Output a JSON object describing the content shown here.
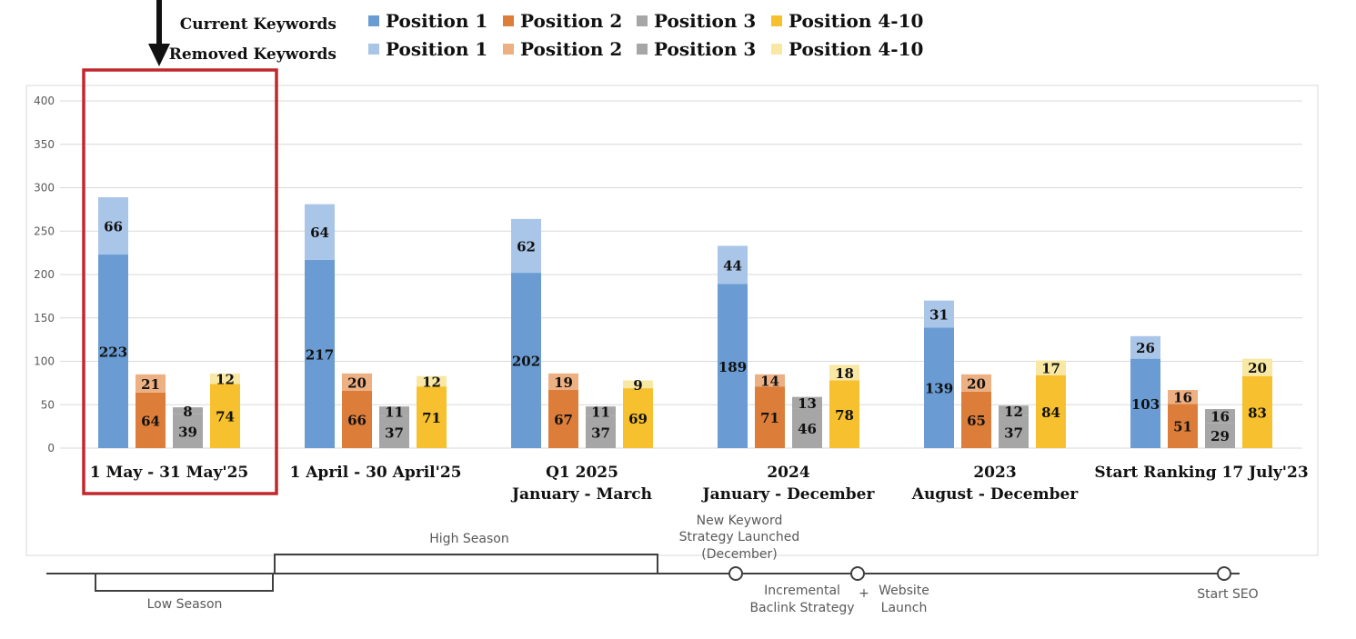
{
  "legend": {
    "current_label": "Current Keywords",
    "removed_label": "Removed Keywords",
    "current_items": [
      {
        "name": "Position 1",
        "color": "#6a9cd3"
      },
      {
        "name": "Position 2",
        "color": "#dc7e3a"
      },
      {
        "name": "Position 3",
        "color": "#a6a6a6"
      },
      {
        "name": "Position 4-10",
        "color": "#f6c02e"
      }
    ],
    "removed_items": [
      {
        "name": "Position 1",
        "color": "#a9c5e7"
      },
      {
        "name": "Position 2",
        "color": "#edb083"
      },
      {
        "name": "Position 3",
        "color": "#a6a6a6"
      },
      {
        "name": "Position 4-10",
        "color": "#f8e8a4"
      }
    ]
  },
  "chart_data": {
    "type": "bar",
    "stacked": true,
    "ylim": [
      0,
      400
    ],
    "yticks": [
      0,
      50,
      100,
      150,
      200,
      250,
      300,
      350,
      400
    ],
    "grid": true,
    "categories": [
      [
        "1 May - 31 May'25"
      ],
      [
        "1 April - 30 April'25"
      ],
      [
        "Q1 2025",
        "January - March"
      ],
      [
        "2024",
        "January - December"
      ],
      [
        "2023",
        "August - December"
      ],
      [
        "Start Ranking 17 July'23"
      ]
    ],
    "series": [
      {
        "name": "Position 1",
        "current": [
          223,
          217,
          202,
          189,
          139,
          103
        ],
        "removed": [
          66,
          64,
          62,
          44,
          31,
          26
        ]
      },
      {
        "name": "Position 2",
        "current": [
          64,
          66,
          67,
          71,
          65,
          51
        ],
        "removed": [
          21,
          20,
          19,
          14,
          20,
          16
        ]
      },
      {
        "name": "Position 3",
        "current": [
          39,
          37,
          37,
          46,
          37,
          29
        ],
        "removed": [
          8,
          11,
          11,
          13,
          12,
          16
        ]
      },
      {
        "name": "Position 4-10",
        "current": [
          74,
          71,
          69,
          78,
          84,
          83
        ],
        "removed": [
          12,
          12,
          9,
          18,
          17,
          20
        ]
      }
    ],
    "highlighted_category": 0
  },
  "timeline": {
    "low_season": "Low Season",
    "high_season": "High Season",
    "new_keyword": [
      "New Keyword",
      "Strategy Launched",
      "(December)"
    ],
    "incremental": [
      "Incremental",
      "Baclink Strategy"
    ],
    "plus": "+",
    "website": [
      "Website",
      "Launch"
    ],
    "start_seo": "Start SEO"
  },
  "colors": {
    "highlight_box": "#c0282d",
    "grid": "#d9d9d9",
    "axis_text": "#595959",
    "timeline": "#404040"
  }
}
